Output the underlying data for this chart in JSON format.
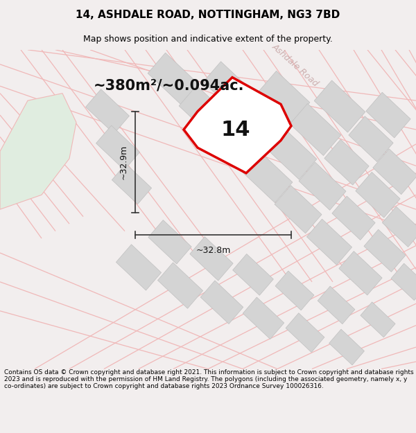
{
  "title_line1": "14, ASHDALE ROAD, NOTTINGHAM, NG3 7BD",
  "title_line2": "Map shows position and indicative extent of the property.",
  "footer_text": "Contains OS data © Crown copyright and database right 2021. This information is subject to Crown copyright and database rights 2023 and is reproduced with the permission of HM Land Registry. The polygons (including the associated geometry, namely x, y co-ordinates) are subject to Crown copyright and database rights 2023 Ordnance Survey 100026316.",
  "area_label": "~380m²/~0.094ac.",
  "road_label": "Ashdale Road",
  "number_label": "14",
  "dim_horizontal": "~32.8m",
  "dim_vertical": "~32.9m",
  "bg_color": "#f2eeee",
  "map_bg": "#ffffff",
  "plot_color": "#dd0000",
  "light_red": "#f0b8b8",
  "gray_block": "#d4d4d4",
  "gray_block_edge": "#c0c0c0",
  "green_area": "#e0ede0",
  "figsize": [
    6.0,
    6.25
  ],
  "dpi": 100,
  "title_fontsize": 11,
  "subtitle_fontsize": 9,
  "footer_fontsize": 6.5,
  "area_fontsize": 15,
  "number_fontsize": 22,
  "dim_fontsize": 9,
  "road_fontsize": 9
}
